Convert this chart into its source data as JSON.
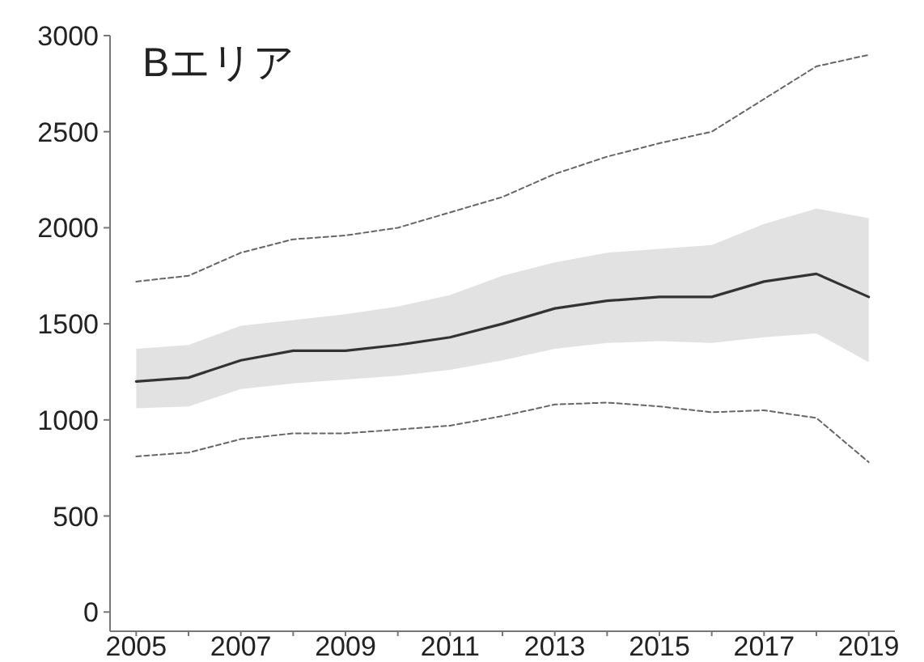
{
  "chart_data": {
    "type": "line",
    "title": "Bエリア",
    "x": [
      2005,
      2006,
      2007,
      2008,
      2009,
      2010,
      2011,
      2012,
      2013,
      2014,
      2015,
      2016,
      2017,
      2018,
      2019
    ],
    "xlim": [
      2004.5,
      2019.5
    ],
    "xticks": [
      2005,
      {
        "value": 2006,
        "label": null
      },
      2007,
      {
        "value": 2008,
        "label": null
      },
      2009,
      {
        "value": 2010,
        "label": null
      },
      2011,
      {
        "value": 2012,
        "label": null
      },
      2013,
      {
        "value": 2014,
        "label": null
      },
      2015,
      {
        "value": 2016,
        "label": null
      },
      2017,
      {
        "value": 2018,
        "label": null
      },
      2019
    ],
    "ylim": [
      -100,
      3000
    ],
    "yticks": [
      0,
      500,
      1000,
      1500,
      2000,
      2500,
      3000
    ],
    "series": [
      {
        "color": "#333333",
        "line_style": "solid",
        "values": [
          1200,
          1220,
          1310,
          1360,
          1360,
          1390,
          1430,
          1500,
          1580,
          1620,
          1640,
          1640,
          1720,
          1760,
          1640
        ],
        "lower": [
          1060,
          1070,
          1160,
          1190,
          1210,
          1230,
          1260,
          1310,
          1370,
          1400,
          1410,
          1400,
          1430,
          1450,
          1300
        ],
        "upper": [
          1370,
          1390,
          1490,
          1520,
          1550,
          1590,
          1650,
          1750,
          1820,
          1870,
          1890,
          1910,
          2020,
          2100,
          2050
        ]
      },
      {
        "color": "#666666",
        "line_style": "dashed",
        "values": [
          1720,
          1750,
          1870,
          1940,
          1960,
          2000,
          2080,
          2160,
          2280,
          2370,
          2440,
          2500,
          2670,
          2840,
          2900
        ]
      },
      {
        "color": "#666666",
        "line_style": "dashed",
        "values": [
          810,
          830,
          900,
          930,
          930,
          950,
          970,
          1020,
          1080,
          1090,
          1070,
          1040,
          1050,
          1010,
          780
        ]
      }
    ]
  }
}
